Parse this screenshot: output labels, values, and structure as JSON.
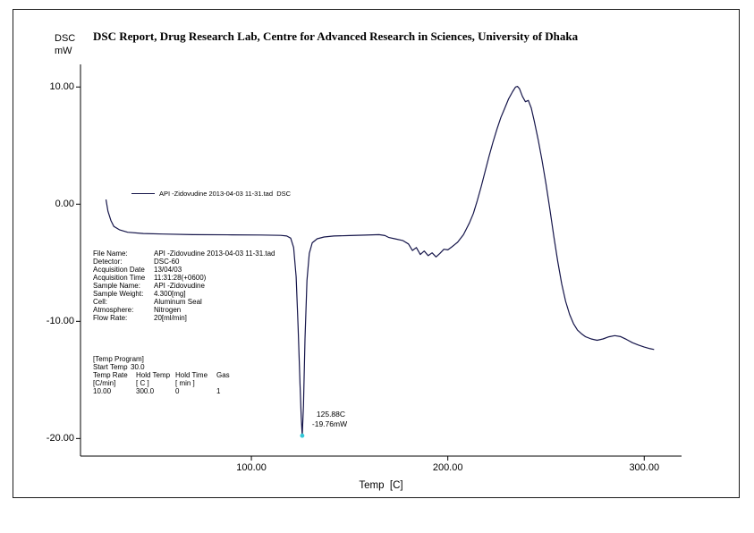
{
  "report": {
    "title": "DSC Report, Drug Research Lab, Centre for Advanced Research in Sciences, University of Dhaka"
  },
  "file_info": {
    "rows": [
      {
        "label": "File Name:",
        "value": "API -Zidovudine 2013-04-03 11-31.tad"
      },
      {
        "label": "Detector:",
        "value": "DSC-60"
      },
      {
        "label": "Acquisition Date",
        "value": "13/04/03"
      },
      {
        "label": "Acquisition Time",
        "value": "11:31:28(+0600)"
      },
      {
        "label": "Sample Name:",
        "value": "API -Zidovudine"
      },
      {
        "label": "Sample Weight:",
        "value": "4.300[mg]"
      },
      {
        "label": "Cell:",
        "value": "Aluminum Seal"
      },
      {
        "label": "Atmosphere:",
        "value": "Nitrogen"
      },
      {
        "label": "Flow Rate:",
        "value": "20[ml/min]"
      }
    ]
  },
  "temp_program": {
    "header": "[Temp Program]",
    "start_temp_label": "Start Temp",
    "start_temp_value": "30.0",
    "columns": [
      "Temp Rate",
      "Hold Temp",
      "Hold Time",
      "Gas"
    ],
    "units": [
      "[C/min]",
      "[ C ]",
      "[ min ]",
      ""
    ],
    "values": [
      "10.00",
      "300.0",
      "0",
      "1"
    ]
  },
  "chart_data": {
    "type": "line",
    "title": "DSC Report, Drug Research Lab, Centre for Advanced Research in Sciences, University of Dhaka",
    "xlabel": "Temp  [C]",
    "ylabel": "DSC mW",
    "ylabel_lines": [
      "DSC",
      "mW"
    ],
    "xlim": [
      13,
      319
    ],
    "ylim": [
      -21.5,
      11.7
    ],
    "grid": false,
    "line_color": "#15154a",
    "axis_color": "#000000",
    "x_ticks": [
      {
        "value": 100,
        "label": "100.00"
      },
      {
        "value": 200,
        "label": "200.00"
      },
      {
        "value": 300,
        "label": "300.00"
      }
    ],
    "y_ticks": [
      {
        "value": 10,
        "label": "10.00"
      },
      {
        "value": 0,
        "label": "0.00"
      },
      {
        "value": -10,
        "label": "-10.00"
      },
      {
        "value": -20,
        "label": "-20.00"
      }
    ],
    "series": [
      {
        "name": "API -Zidovudine 2013-04-03 11-31.tad  DSC",
        "points": [
          [
            26,
            0.4
          ],
          [
            27,
            -0.6
          ],
          [
            28.5,
            -1.4
          ],
          [
            30,
            -1.9
          ],
          [
            33,
            -2.2
          ],
          [
            37,
            -2.4
          ],
          [
            45,
            -2.5
          ],
          [
            55,
            -2.55
          ],
          [
            70,
            -2.6
          ],
          [
            90,
            -2.62
          ],
          [
            105,
            -2.63
          ],
          [
            115,
            -2.66
          ],
          [
            118,
            -2.72
          ],
          [
            120,
            -2.9
          ],
          [
            121.5,
            -3.7
          ],
          [
            122.8,
            -6.2
          ],
          [
            123.8,
            -10.5
          ],
          [
            124.8,
            -15.5
          ],
          [
            125.4,
            -18.2
          ],
          [
            125.88,
            -19.76
          ],
          [
            126.5,
            -17.2
          ],
          [
            127.3,
            -11.5
          ],
          [
            128.3,
            -6.5
          ],
          [
            129.5,
            -4.2
          ],
          [
            131,
            -3.3
          ],
          [
            133.5,
            -2.95
          ],
          [
            137,
            -2.8
          ],
          [
            142,
            -2.72
          ],
          [
            150,
            -2.68
          ],
          [
            158,
            -2.64
          ],
          [
            165,
            -2.6
          ],
          [
            168,
            -2.68
          ],
          [
            170,
            -2.85
          ],
          [
            173,
            -2.95
          ],
          [
            177,
            -3.1
          ],
          [
            180,
            -3.4
          ],
          [
            182,
            -3.95
          ],
          [
            184,
            -3.7
          ],
          [
            186,
            -4.3
          ],
          [
            188,
            -4.0
          ],
          [
            190,
            -4.4
          ],
          [
            192,
            -4.15
          ],
          [
            194,
            -4.5
          ],
          [
            196,
            -4.2
          ],
          [
            198,
            -3.85
          ],
          [
            200,
            -3.9
          ],
          [
            202,
            -3.65
          ],
          [
            205,
            -3.25
          ],
          [
            208,
            -2.6
          ],
          [
            211,
            -1.6
          ],
          [
            213,
            -0.8
          ],
          [
            215,
            0.3
          ],
          [
            217,
            1.5
          ],
          [
            219,
            2.8
          ],
          [
            221,
            4.1
          ],
          [
            223,
            5.3
          ],
          [
            225,
            6.4
          ],
          [
            227,
            7.4
          ],
          [
            229,
            8.2
          ],
          [
            231,
            9.0
          ],
          [
            233,
            9.6
          ],
          [
            234.5,
            10.0
          ],
          [
            235.5,
            10.05
          ],
          [
            236.5,
            9.85
          ],
          [
            238,
            9.2
          ],
          [
            239.5,
            8.75
          ],
          [
            241,
            8.85
          ],
          [
            242.5,
            8.2
          ],
          [
            244,
            7.1
          ],
          [
            246,
            5.5
          ],
          [
            248,
            3.7
          ],
          [
            250,
            1.7
          ],
          [
            252,
            -0.5
          ],
          [
            254,
            -2.8
          ],
          [
            256,
            -4.9
          ],
          [
            258,
            -6.8
          ],
          [
            260,
            -8.3
          ],
          [
            262,
            -9.4
          ],
          [
            264,
            -10.2
          ],
          [
            266,
            -10.75
          ],
          [
            268,
            -11.05
          ],
          [
            270,
            -11.3
          ],
          [
            273,
            -11.5
          ],
          [
            276,
            -11.62
          ],
          [
            279,
            -11.5
          ],
          [
            282,
            -11.32
          ],
          [
            285,
            -11.22
          ],
          [
            288,
            -11.3
          ],
          [
            291,
            -11.55
          ],
          [
            294,
            -11.82
          ],
          [
            297,
            -12.02
          ],
          [
            300,
            -12.2
          ],
          [
            303,
            -12.33
          ],
          [
            305,
            -12.4
          ]
        ]
      }
    ],
    "annotation": {
      "x": 125.88,
      "y": -19.76,
      "line1": "125.88C",
      "line2": "-19.76mW",
      "marker_color": "#35c8d8"
    }
  }
}
